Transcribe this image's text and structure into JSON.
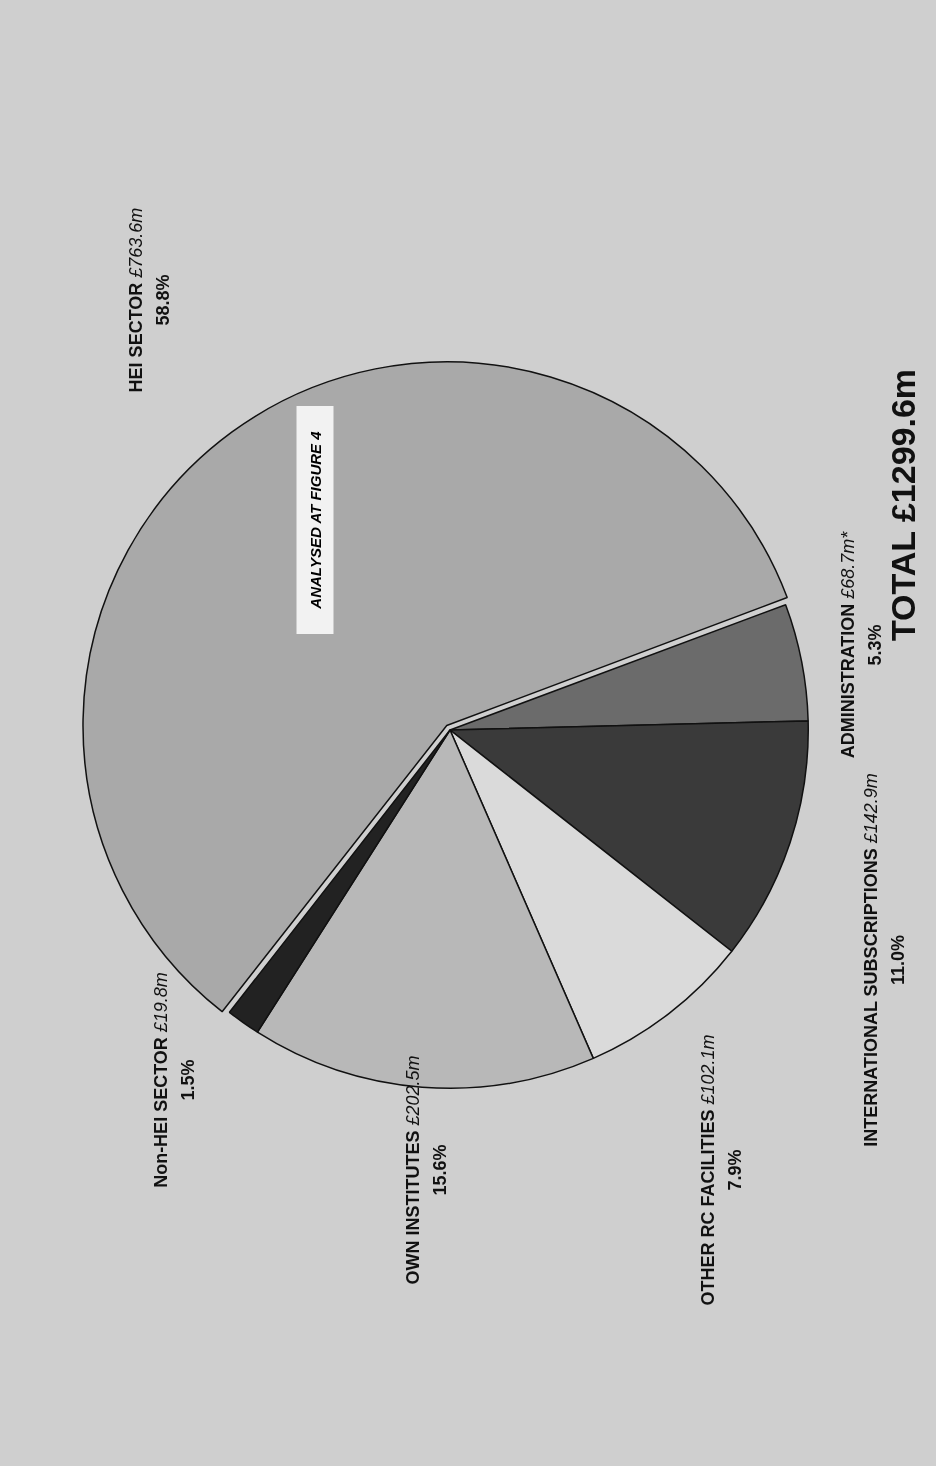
{
  "chart_data": {
    "type": "pie",
    "categories": [
      "HEI SECTOR",
      "ADMINISTRATION",
      "INTERNATIONAL SUBSCRIPTIONS",
      "OTHER RC FACILITIES",
      "OWN INSTITUTES",
      "Non-HEI SECTOR"
    ],
    "values": [
      763.6,
      68.7,
      142.9,
      102.1,
      202.5,
      19.8
    ],
    "value_labels": [
      "£763.6m",
      "£68.7m*",
      "£142.9m",
      "£102.1m",
      "£202.5m",
      "£19.8m"
    ],
    "colors": [
      "#a9a9a9",
      "#6b6b6b",
      "#3a3a3a",
      "#dadada",
      "#b8b8b8",
      "#222222"
    ],
    "title": "TOTAL £1299.6m",
    "annotations": [
      {
        "text": "58.8%",
        "x": "HEI SECTOR"
      },
      {
        "text": "5.3%",
        "x": "ADMINISTRATION"
      },
      {
        "text": "11.0%",
        "x": "INTERNATIONAL SUBSCRIPTIONS"
      },
      {
        "text": "7.9%",
        "x": "OTHER RC FACILITIES"
      },
      {
        "text": "15.6%",
        "x": "OWN INSTITUTES"
      },
      {
        "text": "1.5%",
        "x": "Non-HEI SECTOR"
      },
      {
        "text": "ANALYSED AT FIGURE 4",
        "x": "HEI SECTOR"
      }
    ],
    "legend": false
  }
}
